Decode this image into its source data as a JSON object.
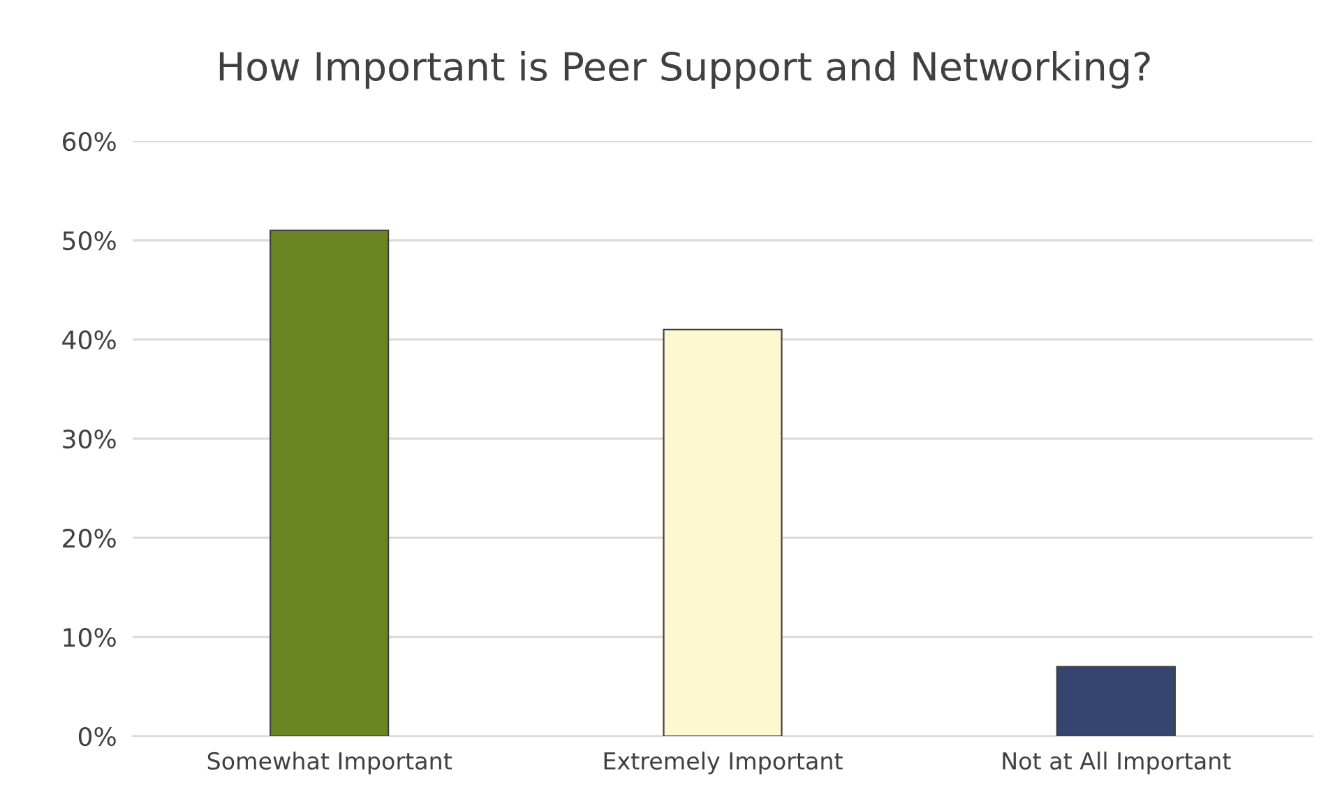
{
  "chart_data": {
    "type": "bar",
    "title": "How Important is Peer Support and Networking?",
    "categories": [
      "Somewhat Important",
      "Extremely Important",
      "Not at All Important"
    ],
    "values": [
      51,
      41,
      7
    ],
    "colors": [
      "#6b8523",
      "#fdf8cf",
      "#34456f"
    ],
    "ylim": [
      0,
      60
    ],
    "yticks": [
      {
        "value": 0,
        "label": "0%"
      },
      {
        "value": 10,
        "label": "10%"
      },
      {
        "value": 20,
        "label": "20%"
      },
      {
        "value": 30,
        "label": "30%"
      },
      {
        "value": 40,
        "label": "40%"
      },
      {
        "value": 50,
        "label": "50%"
      },
      {
        "value": 60,
        "label": "60%"
      }
    ],
    "grid": "y"
  }
}
